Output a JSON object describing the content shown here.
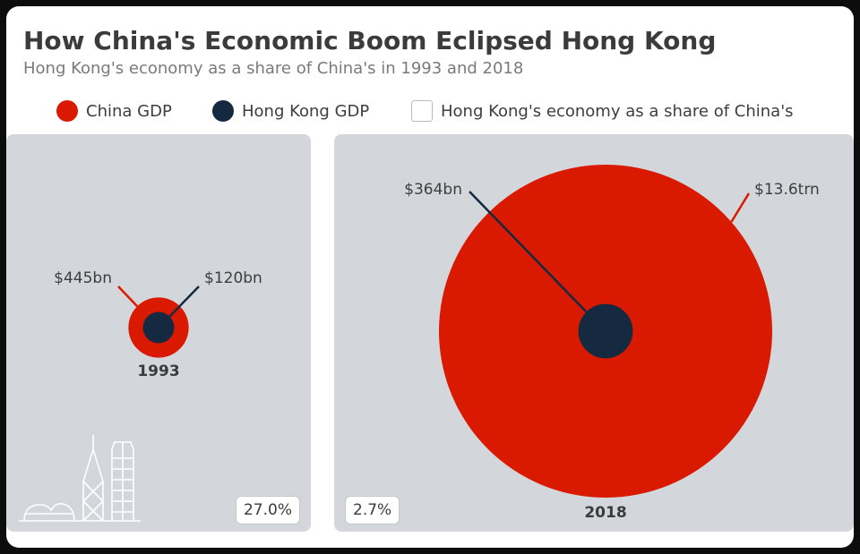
{
  "title": "How China's Economic Boom Eclipsed Hong Kong",
  "subtitle": "Hong Kong's economy as a share of China's in 1993 and 2018",
  "colors": {
    "china": "#d91a00",
    "hong_kong": "#152a40",
    "panel_bg": "#d3d7db"
  },
  "legend": [
    {
      "label": "China GDP",
      "shape": "circle",
      "color": "#d91a00"
    },
    {
      "label": "Hong Kong GDP",
      "shape": "circle",
      "color": "#152a40"
    },
    {
      "label": "Hong Kong's economy as a share of China's",
      "shape": "box",
      "color": "#ffffff"
    }
  ],
  "decoration": {
    "skyline_icon": "hong-kong-skyline-icon"
  },
  "chart_data": {
    "type": "nested-bubble",
    "series": [
      {
        "year": "1993",
        "china_gdp": 445,
        "china_label": "$445bn",
        "hong_kong_gdp": 120,
        "hong_kong_label": "$120bn",
        "share_label": "27.0%"
      },
      {
        "year": "2018",
        "china_gdp": 13600,
        "china_label": "$13.6trn",
        "hong_kong_gdp": 364,
        "hong_kong_label": "$364bn",
        "share_label": "2.7%"
      }
    ]
  }
}
